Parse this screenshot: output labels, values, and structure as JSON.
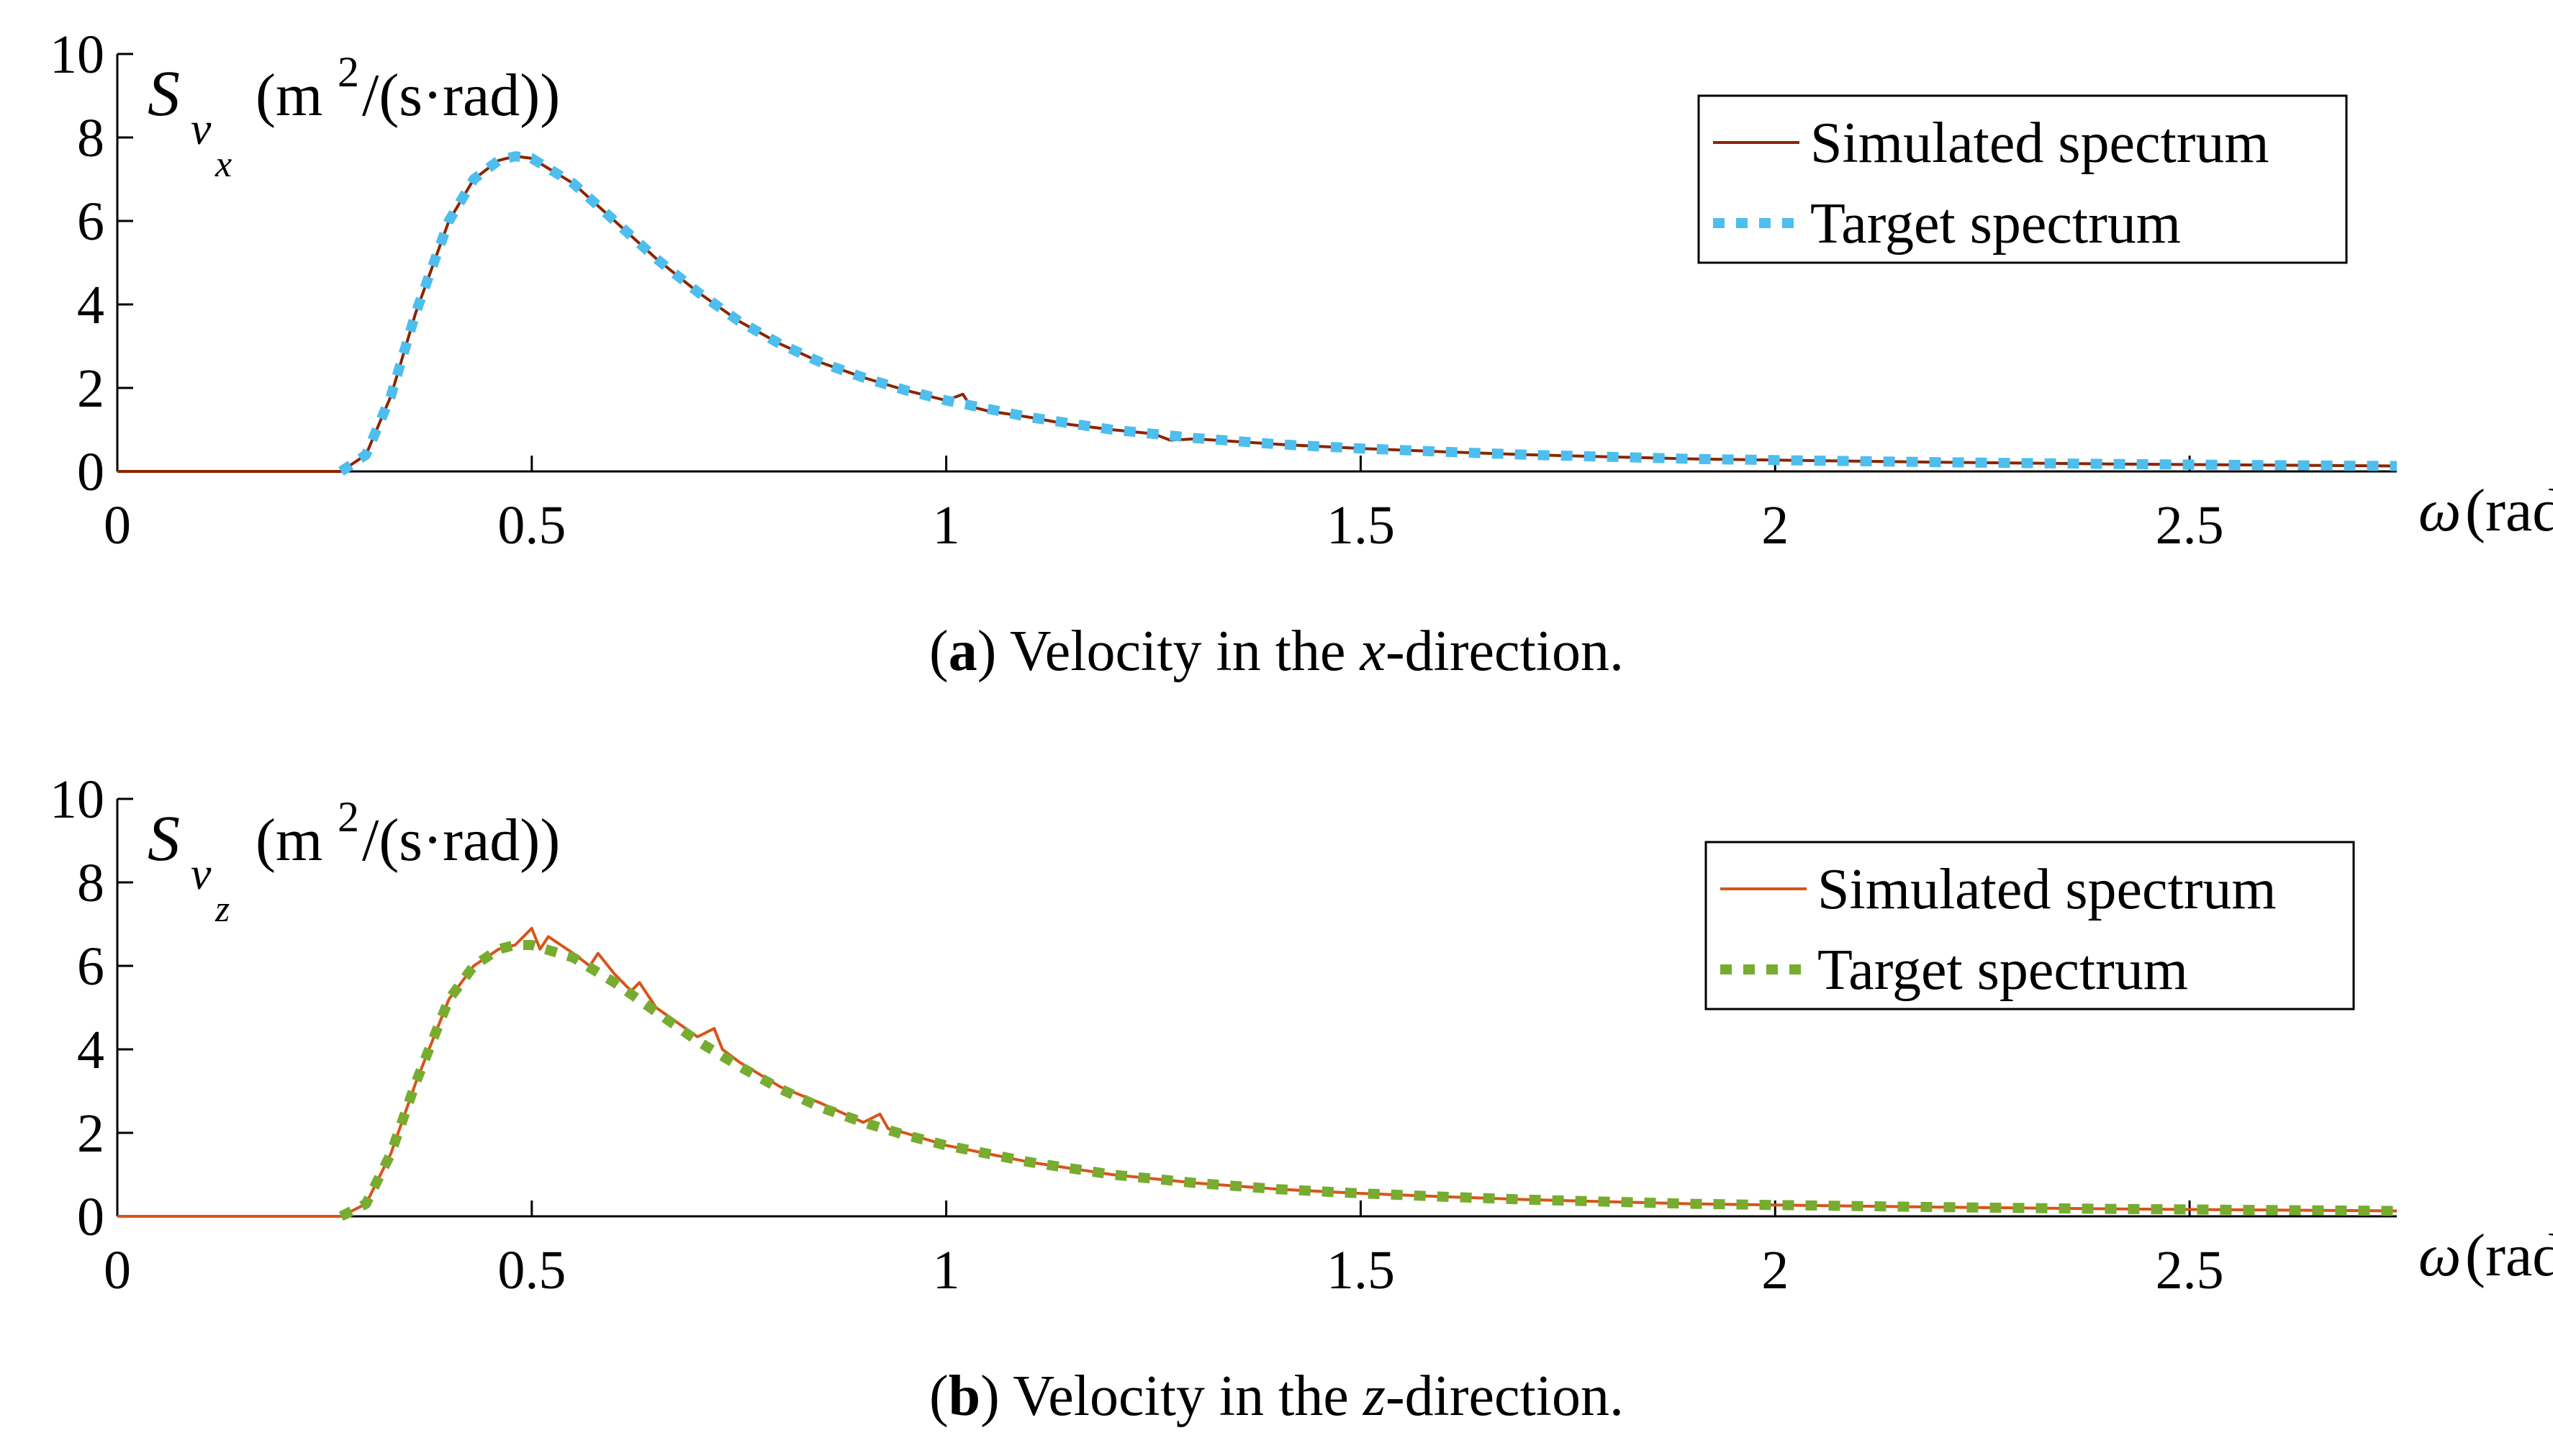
{
  "chart_data": [
    {
      "type": "line",
      "title": "",
      "ylabel_main": "S",
      "ylabel_sub": "v",
      "ylabel_subsub": "x",
      "ylabel_unit_pre": "(m",
      "ylabel_unit_sup": "2",
      "ylabel_unit_post": "/(s·rad))",
      "xlabel_symbol": "ω",
      "xlabel_unit": "(rad/s)",
      "xlim": [
        0,
        2.75
      ],
      "ylim": [
        0,
        10
      ],
      "xticks": [
        0,
        0.5,
        1,
        1.5,
        2,
        2.5
      ],
      "xtick_labels": [
        "0",
        "0.5",
        "1",
        "1.5",
        "2",
        "2.5"
      ],
      "yticks": [
        0,
        2,
        4,
        6,
        8,
        10
      ],
      "ytick_labels": [
        "0",
        "2",
        "4",
        "6",
        "8",
        "10"
      ],
      "legend": "top-right",
      "series": [
        {
          "name": "Simulated spectrum",
          "style": "solid",
          "color": "#8B2500",
          "x": [
            0,
            0.2,
            0.27,
            0.3,
            0.33,
            0.36,
            0.4,
            0.43,
            0.46,
            0.48,
            0.5,
            0.55,
            0.6,
            0.65,
            0.7,
            0.75,
            0.8,
            0.85,
            0.9,
            0.95,
            1.0,
            1.02,
            1.03,
            1.05,
            1.1,
            1.15,
            1.2,
            1.25,
            1.27,
            1.3,
            1.4,
            1.5,
            1.6,
            1.7,
            1.8,
            1.9,
            2.0,
            2.2,
            2.4,
            2.6,
            2.75
          ],
          "y": [
            0,
            0,
            0,
            0.4,
            1.8,
            3.8,
            6.0,
            7.0,
            7.45,
            7.55,
            7.5,
            6.9,
            6.0,
            5.1,
            4.3,
            3.6,
            3.05,
            2.6,
            2.25,
            1.95,
            1.7,
            1.85,
            1.55,
            1.45,
            1.3,
            1.12,
            1.0,
            0.9,
            0.75,
            0.78,
            0.65,
            0.55,
            0.47,
            0.4,
            0.35,
            0.3,
            0.27,
            0.22,
            0.18,
            0.15,
            0.13
          ]
        },
        {
          "name": "Target spectrum",
          "style": "dotted",
          "color": "#4DBEEE",
          "x": [
            0.27,
            0.3,
            0.33,
            0.36,
            0.4,
            0.43,
            0.46,
            0.48,
            0.5,
            0.55,
            0.6,
            0.65,
            0.7,
            0.75,
            0.8,
            0.85,
            0.9,
            0.95,
            1.0,
            1.1,
            1.2,
            1.3,
            1.4,
            1.5,
            1.6,
            1.7,
            1.8,
            1.9,
            2.0,
            2.2,
            2.4,
            2.6,
            2.75
          ],
          "y": [
            0,
            0.4,
            1.8,
            3.8,
            6.0,
            7.0,
            7.45,
            7.55,
            7.5,
            6.9,
            6.0,
            5.1,
            4.3,
            3.6,
            3.05,
            2.6,
            2.25,
            1.95,
            1.7,
            1.3,
            1.0,
            0.8,
            0.65,
            0.55,
            0.47,
            0.4,
            0.35,
            0.3,
            0.27,
            0.22,
            0.18,
            0.15,
            0.13
          ]
        }
      ]
    },
    {
      "type": "line",
      "title": "",
      "ylabel_main": "S",
      "ylabel_sub": "v",
      "ylabel_subsub": "z",
      "ylabel_unit_pre": "(m",
      "ylabel_unit_sup": "2",
      "ylabel_unit_post": "/(s·rad))",
      "xlabel_symbol": "ω",
      "xlabel_unit": "(rad/s)",
      "xlim": [
        0,
        2.75
      ],
      "ylim": [
        0,
        10
      ],
      "xticks": [
        0,
        0.5,
        1,
        1.5,
        2,
        2.5
      ],
      "xtick_labels": [
        "0",
        "0.5",
        "1",
        "1.5",
        "2",
        "2.5"
      ],
      "yticks": [
        0,
        2,
        4,
        6,
        8,
        10
      ],
      "ytick_labels": [
        "0",
        "2",
        "4",
        "6",
        "8",
        "10"
      ],
      "legend": "top-right",
      "series": [
        {
          "name": "Simulated spectrum",
          "style": "solid",
          "color": "#D95319",
          "x": [
            0,
            0.2,
            0.27,
            0.3,
            0.33,
            0.36,
            0.4,
            0.43,
            0.46,
            0.48,
            0.5,
            0.51,
            0.52,
            0.55,
            0.57,
            0.58,
            0.6,
            0.62,
            0.63,
            0.65,
            0.7,
            0.72,
            0.73,
            0.75,
            0.8,
            0.85,
            0.9,
            0.92,
            0.93,
            0.95,
            1.0,
            1.1,
            1.2,
            1.3,
            1.4,
            1.5,
            1.6,
            1.7,
            1.8,
            1.9,
            2.0,
            2.2,
            2.4,
            2.6,
            2.75
          ],
          "y": [
            0,
            0,
            0,
            0.3,
            1.5,
            3.2,
            5.2,
            6.0,
            6.4,
            6.5,
            6.9,
            6.4,
            6.7,
            6.3,
            6.0,
            6.3,
            5.8,
            5.4,
            5.6,
            5.0,
            4.3,
            4.5,
            4.0,
            3.7,
            3.1,
            2.7,
            2.25,
            2.45,
            2.1,
            2.0,
            1.7,
            1.3,
            1.0,
            0.8,
            0.65,
            0.55,
            0.47,
            0.4,
            0.35,
            0.3,
            0.27,
            0.22,
            0.18,
            0.15,
            0.13
          ]
        },
        {
          "name": "Target spectrum",
          "style": "dotted",
          "color": "#77AC30",
          "x": [
            0.27,
            0.3,
            0.33,
            0.36,
            0.4,
            0.43,
            0.46,
            0.48,
            0.5,
            0.55,
            0.6,
            0.65,
            0.7,
            0.75,
            0.8,
            0.85,
            0.9,
            0.95,
            1.0,
            1.1,
            1.2,
            1.3,
            1.4,
            1.5,
            1.6,
            1.7,
            1.8,
            1.9,
            2.0,
            2.2,
            2.4,
            2.6,
            2.75
          ],
          "y": [
            0,
            0.3,
            1.5,
            3.2,
            5.2,
            6.0,
            6.4,
            6.5,
            6.5,
            6.2,
            5.6,
            4.9,
            4.2,
            3.6,
            3.05,
            2.6,
            2.25,
            1.95,
            1.7,
            1.3,
            1.0,
            0.8,
            0.65,
            0.55,
            0.47,
            0.4,
            0.35,
            0.3,
            0.27,
            0.22,
            0.18,
            0.15,
            0.13
          ]
        }
      ]
    }
  ],
  "captions": [
    {
      "label": "(a)",
      "text_before": "Velocity in the ",
      "var": "x",
      "text_after": "-direction."
    },
    {
      "label": "(b)",
      "text_before": "Velocity in the ",
      "var": "z",
      "text_after": "-direction."
    }
  ]
}
